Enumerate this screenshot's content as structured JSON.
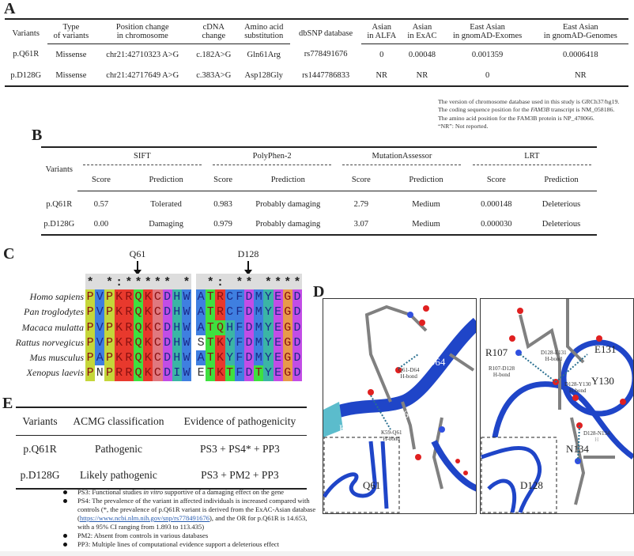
{
  "panel_labels": {
    "a": "A",
    "b": "B",
    "c": "C",
    "d": "D",
    "e": "E"
  },
  "table_a": {
    "headers": [
      [
        "Variants",
        ""
      ],
      [
        "Type",
        "of variants"
      ],
      [
        "Position change",
        "in chromosome"
      ],
      [
        "cDNA",
        "change"
      ],
      [
        "Amino acid",
        "substitution"
      ],
      [
        "dbSNP database",
        ""
      ],
      [
        "Asian",
        "in ALFA"
      ],
      [
        "Asian",
        "in ExAC"
      ],
      [
        "East Asian",
        "in gnomAD-Exomes"
      ],
      [
        "East Asian",
        "in gnomAD-Genomes"
      ]
    ],
    "rows": [
      [
        "p.Q61R",
        "Missense",
        "chr21:42710323 A>G",
        "c.182A>G",
        "Gln61Arg",
        "rs778491676",
        "0",
        "0.00048",
        "0.001359",
        "0.0006418"
      ],
      [
        "p.D128G",
        "Missense",
        "chr21:42717649 A>G",
        "c.383A>G",
        "Asp128Gly",
        "rs1447786833",
        "NR",
        "NR",
        "0",
        "NR"
      ]
    ],
    "notes": {
      "line1": "The version of chromosome database used in this study is GRCh37/hg19.",
      "line2_pre": "The coding sequence position for the ",
      "line2_gene": "FAM3B",
      "line2_post": " transcript is NM_058186.",
      "line3": "The amino acid position for the FAM3B protein is NP_478066.",
      "line4": "“NR”: Not reported."
    }
  },
  "table_b": {
    "row_header": "Variants",
    "groups": [
      "SIFT",
      "PolyPhen-2",
      "MutationAssessor",
      "LRT"
    ],
    "subheaders": [
      "Score",
      "Prediction"
    ],
    "rows": [
      [
        "p.Q61R",
        "0.57",
        "Tolerated",
        "0.983",
        "Probably damaging",
        "2.79",
        "Medium",
        "0.000148",
        "Deleterious"
      ],
      [
        "p.D128G",
        "0.00",
        "Damaging",
        "0.979",
        "Probably damaging",
        "3.07",
        "Medium",
        "0.000030",
        "Deleterious"
      ]
    ]
  },
  "alignment": {
    "markers": [
      "Q61",
      "D128"
    ],
    "species": [
      "Homo sapiens",
      "Pan troglodytes",
      "Macaca mulatta",
      "Rattus norvegicus",
      "Mus musculus",
      "Xenopus laevis"
    ],
    "blocks": [
      {
        "conservation": [
          "*",
          " ",
          "*",
          ":",
          "*",
          "*",
          "*",
          "*",
          "*",
          " ",
          "*"
        ],
        "sequences": [
          "PVPKRQKCDHW",
          "PVPKRQKCDHW",
          "PVPKRQKCDHW",
          "PVPKRQKCDHW",
          "PAPKRQKCDHW",
          "PNPRRQKCDIW"
        ],
        "colors": [
          "ybyrrgrpmtb",
          "ybyrrgrpmtb",
          "ybyrrgrpmtb",
          "ybyrrgrpmtb",
          "ybyrrgrpmtb",
          "ywyrrgrpmtb"
        ]
      },
      {
        "conservation": [
          " ",
          "*",
          ":",
          " ",
          "*",
          "*",
          " ",
          "*",
          "*",
          "*",
          "*"
        ],
        "sequences": [
          "ATRCFDMYEGD",
          "ATRCFDMYEGD",
          "ATQHFDMYEGD",
          "STKYFDMYEGD",
          "ATKYFDMYEGD",
          "ETKTFDTYEGD"
        ],
        "colors": [
          "bgrbbmbtmom",
          "bgrbbmbtmom",
          "bggtbmbtmom",
          "wgrtbmbtmom",
          "bgrtbmbtmom",
          "wgrgbmgtmom"
        ]
      }
    ],
    "palette": {
      "y": "#c5d63a",
      "b": "#3f7fe0",
      "r": "#e8392d",
      "g": "#3fe03f",
      "p": "#e0787f",
      "m": "#c24de6",
      "t": "#3bb5a5",
      "o": "#e89a4a",
      "w": "#ffffff"
    }
  },
  "structure": {
    "left": {
      "residues": [
        "D64",
        "Q61",
        "K59"
      ],
      "hbonds": [
        [
          "Q61-D64",
          "H-bond"
        ],
        [
          "K59-Q61",
          "H-bond"
        ]
      ],
      "inset_label": "Q61"
    },
    "right": {
      "residues": [
        "R107",
        "E131",
        "Y130",
        "D128",
        "N134"
      ],
      "hbonds": [
        [
          "D128-E131",
          "H-bond"
        ],
        [
          "R107-D128",
          "H-bond"
        ],
        [
          "D128-Y130",
          "H-bond"
        ],
        [
          "D128-N134",
          "H"
        ]
      ],
      "inset_label": "D128"
    },
    "colors": {
      "ribbon": "#1f45c8",
      "carbon": "#808080",
      "oxygen": "#e02020",
      "nitrogen": "#3050e0",
      "k59_ribbon": "#5bbccc",
      "mutation": "#d040c0"
    }
  },
  "table_e": {
    "headers": [
      "Variants",
      "ACMG classification",
      "Evidence of pathogenicity"
    ],
    "rows": [
      [
        "p.Q61R",
        "Pathogenic",
        "PS3 + PS4* + PP3"
      ],
      [
        "p.D128G",
        "Likely pathogenic",
        "PS3 + PM2 + PP3"
      ]
    ],
    "notes": {
      "ps3_pre": "PS3: Functional studies ",
      "ps3_it": "in vitro",
      "ps3_post": " supportive of a damaging effect on the gene",
      "ps4_pre": "PS4: The prevalence of the variant in affected individuals is increased compared with controls (*, the prevalence of p.Q61R variant is derived from the ExAC-Asian database (",
      "ps4_link": "https://www.ncbi.nlm.nih.gov/snp/rs778491676",
      "ps4_post": "), and the OR for p.Q61R is 14.653, with a 95% CI ranging from 1.893 to 113.435)",
      "pm2": "PM2: Absent from controls in various databases",
      "pp3": "PP3: Multiple lines of computational evidence support a deleterious effect"
    }
  }
}
